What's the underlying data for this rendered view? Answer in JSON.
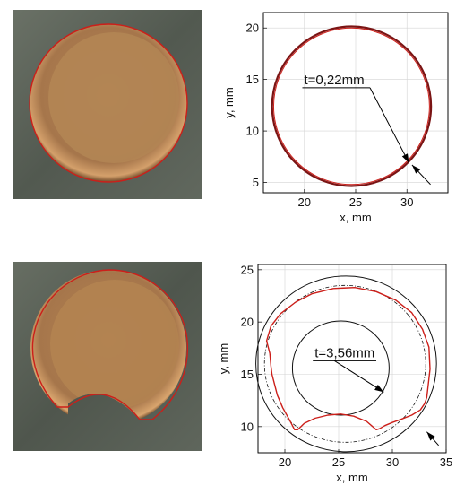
{
  "colors": {
    "trace_red": "#cc1f1a",
    "reference_black": "#111111",
    "grid": "#d4d4d4",
    "copper_center": "#b48455",
    "copper_edge": "#6f4a2a",
    "steel_background": "#5b6257"
  },
  "photos": [
    {
      "label": "top-photo",
      "shape": "full-disc"
    },
    {
      "label": "bottom-photo",
      "shape": "disc-with-bottom-notch"
    }
  ],
  "chart_data": [
    {
      "type": "line",
      "xlabel": "x, mm",
      "ylabel": "y, mm",
      "xlim": [
        16,
        34
      ],
      "ylim": [
        4,
        21.5
      ],
      "xticks": [
        20,
        25,
        30
      ],
      "yticks": [
        5,
        10,
        15,
        20
      ],
      "grid": true,
      "annotation": "t=0,22mm",
      "series": [
        {
          "shape": "circle",
          "center": [
            24.6,
            12.4
          ],
          "radius": 7.75,
          "color": "#7a1414",
          "width": 2.2
        },
        {
          "shape": "circle",
          "center": [
            24.6,
            12.4
          ],
          "radius": 7.6,
          "color": "#cc1f1a",
          "width": 1.0
        }
      ]
    },
    {
      "type": "line",
      "xlabel": "x, mm",
      "ylabel": "y, mm",
      "xlim": [
        17.5,
        35
      ],
      "ylim": [
        7.5,
        25.5
      ],
      "xticks": [
        20,
        25,
        30,
        35
      ],
      "yticks": [
        10,
        15,
        20,
        25
      ],
      "grid": true,
      "annotation": "t=3,56mm",
      "outer_circle": {
        "center": [
          25.7,
          16.0
        ],
        "radius": 8.4
      },
      "inner_circle": {
        "center": [
          25.2,
          15.6
        ],
        "radius": 4.5
      },
      "dashed_circle": {
        "center": [
          25.6,
          16.0
        ],
        "radius": 7.5
      },
      "red_outline": {
        "x": [
          18.6,
          18.3,
          18.7,
          19.6,
          21.0,
          22.5,
          24.5,
          26.5,
          28.5,
          30.3,
          31.8,
          32.8,
          33.4,
          33.5,
          33.3,
          33.2,
          33.0,
          32.6,
          31.8,
          30.8,
          30.0,
          29.3,
          28.8,
          28.5,
          27.6,
          26.4,
          25.2,
          24.0,
          22.8,
          21.8,
          21.2,
          20.9,
          20.4,
          19.8,
          19.3,
          19.0,
          18.8,
          18.7,
          18.6
        ],
        "y": [
          17.0,
          18.2,
          19.6,
          20.8,
          21.9,
          22.7,
          23.2,
          23.3,
          22.9,
          22.1,
          20.9,
          19.3,
          17.6,
          15.5,
          13.7,
          12.8,
          12.2,
          11.6,
          11.1,
          10.7,
          10.4,
          10.1,
          9.8,
          9.7,
          10.5,
          11.0,
          11.2,
          11.1,
          10.8,
          10.3,
          9.7,
          9.7,
          10.7,
          11.8,
          13.0,
          14.2,
          15.0,
          15.8,
          17.0
        ]
      },
      "lower_arrow_target": [
        33.2,
        9.5
      ]
    }
  ]
}
